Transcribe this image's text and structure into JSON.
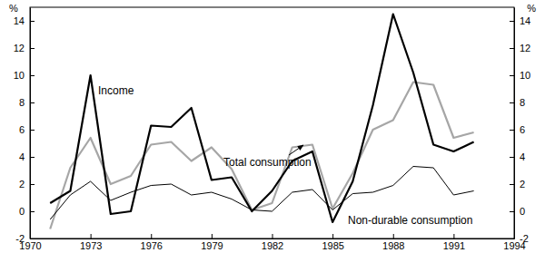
{
  "chart_data": {
    "type": "line",
    "ylabel": "%",
    "x": [
      1971,
      1972,
      1973,
      1974,
      1975,
      1976,
      1977,
      1978,
      1979,
      1980,
      1981,
      1982,
      1983,
      1984,
      1985,
      1986,
      1987,
      1988,
      1989,
      1990,
      1991,
      1992
    ],
    "series": [
      {
        "name": "Income",
        "color": "#000000",
        "line_style": "solid",
        "values": [
          0.6,
          1.5,
          10.0,
          -0.2,
          0.0,
          6.3,
          6.2,
          7.6,
          2.3,
          2.5,
          0.0,
          1.5,
          3.7,
          4.4,
          -0.8,
          2.2,
          7.8,
          14.5,
          10.2,
          4.9,
          4.4,
          5.1
        ]
      },
      {
        "name": "Total consumption",
        "color": "#a6a6a6",
        "line_style": "solid",
        "values": [
          -1.3,
          3.2,
          5.4,
          2.0,
          2.6,
          4.9,
          5.1,
          3.7,
          4.7,
          3.1,
          0.1,
          0.6,
          4.7,
          4.9,
          0.2,
          2.8,
          6.0,
          6.7,
          9.5,
          9.3,
          5.4,
          5.8
        ]
      },
      {
        "name": "Non-durable consumption",
        "color": "#000000",
        "line_style": "solid",
        "values": [
          -0.6,
          1.2,
          2.2,
          0.8,
          1.4,
          1.9,
          2.0,
          1.2,
          1.4,
          0.9,
          0.1,
          0.0,
          1.4,
          1.6,
          0.1,
          1.3,
          1.4,
          1.9,
          3.3,
          3.2,
          1.2,
          1.5
        ]
      }
    ],
    "xlim": [
      1970,
      1994
    ],
    "xticks": [
      1970,
      1973,
      1976,
      1979,
      1982,
      1985,
      1988,
      1991,
      1994
    ],
    "ylim": [
      -2,
      15
    ],
    "yticks": [
      -2,
      0,
      2,
      4,
      6,
      8,
      10,
      12,
      14
    ],
    "grid": false
  }
}
